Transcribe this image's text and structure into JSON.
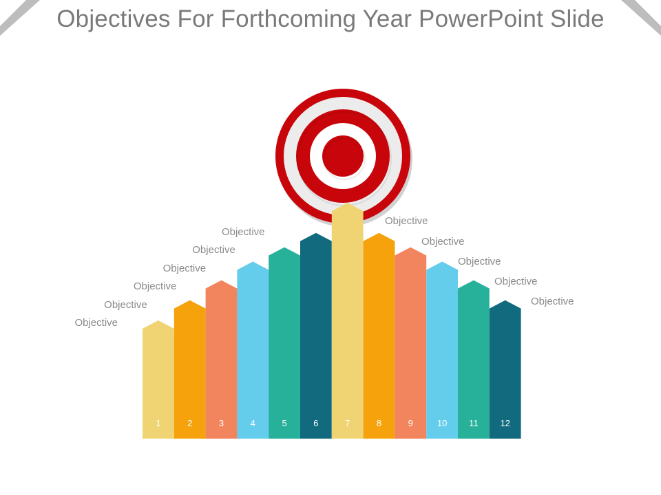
{
  "slide": {
    "title": "Objectives For Forthcoming Year PowerPoint Slide"
  },
  "target": {
    "ring_colors": [
      "#c8050b",
      "#ececec",
      "#c8050b",
      "#ffffff",
      "#c8050b"
    ]
  },
  "bars": [
    {
      "number": "1",
      "label": "Objective",
      "color": "#f0d473",
      "level": 0.38
    },
    {
      "number": "2",
      "label": "Objective",
      "color": "#f5a20c",
      "level": 0.52
    },
    {
      "number": "3",
      "label": "Objective",
      "color": "#f2845e",
      "level": 0.66
    },
    {
      "number": "4",
      "label": "Objective",
      "color": "#64cdec",
      "level": 0.79
    },
    {
      "number": "5",
      "label": "Objective",
      "color": "#27b09a",
      "level": 0.89
    },
    {
      "number": "6",
      "label": "Objective",
      "color": "#116a7d",
      "level": 0.99
    },
    {
      "number": "7",
      "label": "",
      "color": "#f0d473",
      "level": 1.2
    },
    {
      "number": "8",
      "label": "Objective",
      "color": "#f5a20c",
      "level": 0.99
    },
    {
      "number": "9",
      "label": "Objective",
      "color": "#f2845e",
      "level": 0.89
    },
    {
      "number": "10",
      "label": "Objective",
      "color": "#64cdec",
      "level": 0.79
    },
    {
      "number": "11",
      "label": "Objective",
      "color": "#27b09a",
      "level": 0.66
    },
    {
      "number": "12",
      "label": "Objective",
      "color": "#116a7d",
      "level": 0.52
    }
  ]
}
